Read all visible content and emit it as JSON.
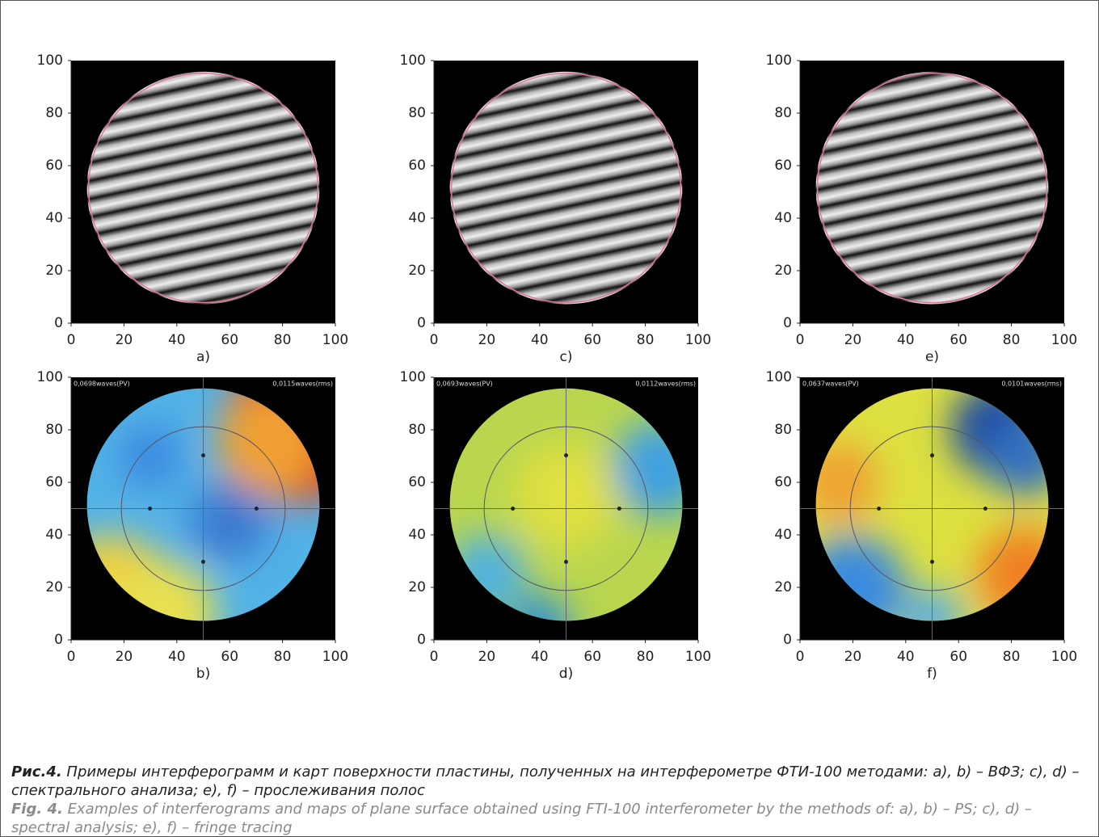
{
  "panels": [
    {
      "label": "a)",
      "kind": "interferogram",
      "xticks": [
        0,
        20,
        40,
        60,
        80,
        100
      ],
      "yticks": [
        0,
        20,
        40,
        60,
        80,
        100
      ]
    },
    {
      "label": "c)",
      "kind": "interferogram",
      "xticks": [
        0,
        20,
        40,
        60,
        80,
        100
      ],
      "yticks": [
        0,
        20,
        40,
        60,
        80,
        100
      ]
    },
    {
      "label": "e)",
      "kind": "interferogram",
      "xticks": [
        0,
        20,
        40,
        60,
        80,
        100
      ],
      "yticks": [
        0,
        20,
        40,
        60,
        80,
        100
      ]
    },
    {
      "label": "b)",
      "kind": "map",
      "pv": "0,0698waves(PV)",
      "rms": "0,0115waves(rms)",
      "xticks": [
        0,
        20,
        40,
        60,
        80,
        100
      ],
      "yticks": [
        0,
        20,
        40,
        60,
        80,
        100
      ]
    },
    {
      "label": "d)",
      "kind": "map",
      "pv": "0,0693waves(PV)",
      "rms": "0,0112waves(rms)",
      "xticks": [
        0,
        20,
        40,
        60,
        80,
        100
      ],
      "yticks": [
        0,
        20,
        40,
        60,
        80,
        100
      ]
    },
    {
      "label": "f)",
      "kind": "map",
      "pv": "0,0637waves(PV)",
      "rms": "0,0101waves(rms)",
      "xticks": [
        0,
        20,
        40,
        60,
        80,
        100
      ],
      "yticks": [
        0,
        20,
        40,
        60,
        80,
        100
      ]
    }
  ],
  "caption": {
    "ru_label": "Рис.4.",
    "ru_text": "Примеры интерферограмм и карт поверхности пластины, полученных на интерферометре ФТИ-100 методами: a), b) – ВФЗ; c), d) – спектрального анализа; e), f) – прослеживания полос",
    "en_label": "Fig. 4.",
    "en_text": "Examples of interferograms and maps of plane surface obtained using FTI-100 interferometer by the methods of: a), b) – PS; c), d) – spectral analysis; e), f) – fringe tracing"
  }
}
